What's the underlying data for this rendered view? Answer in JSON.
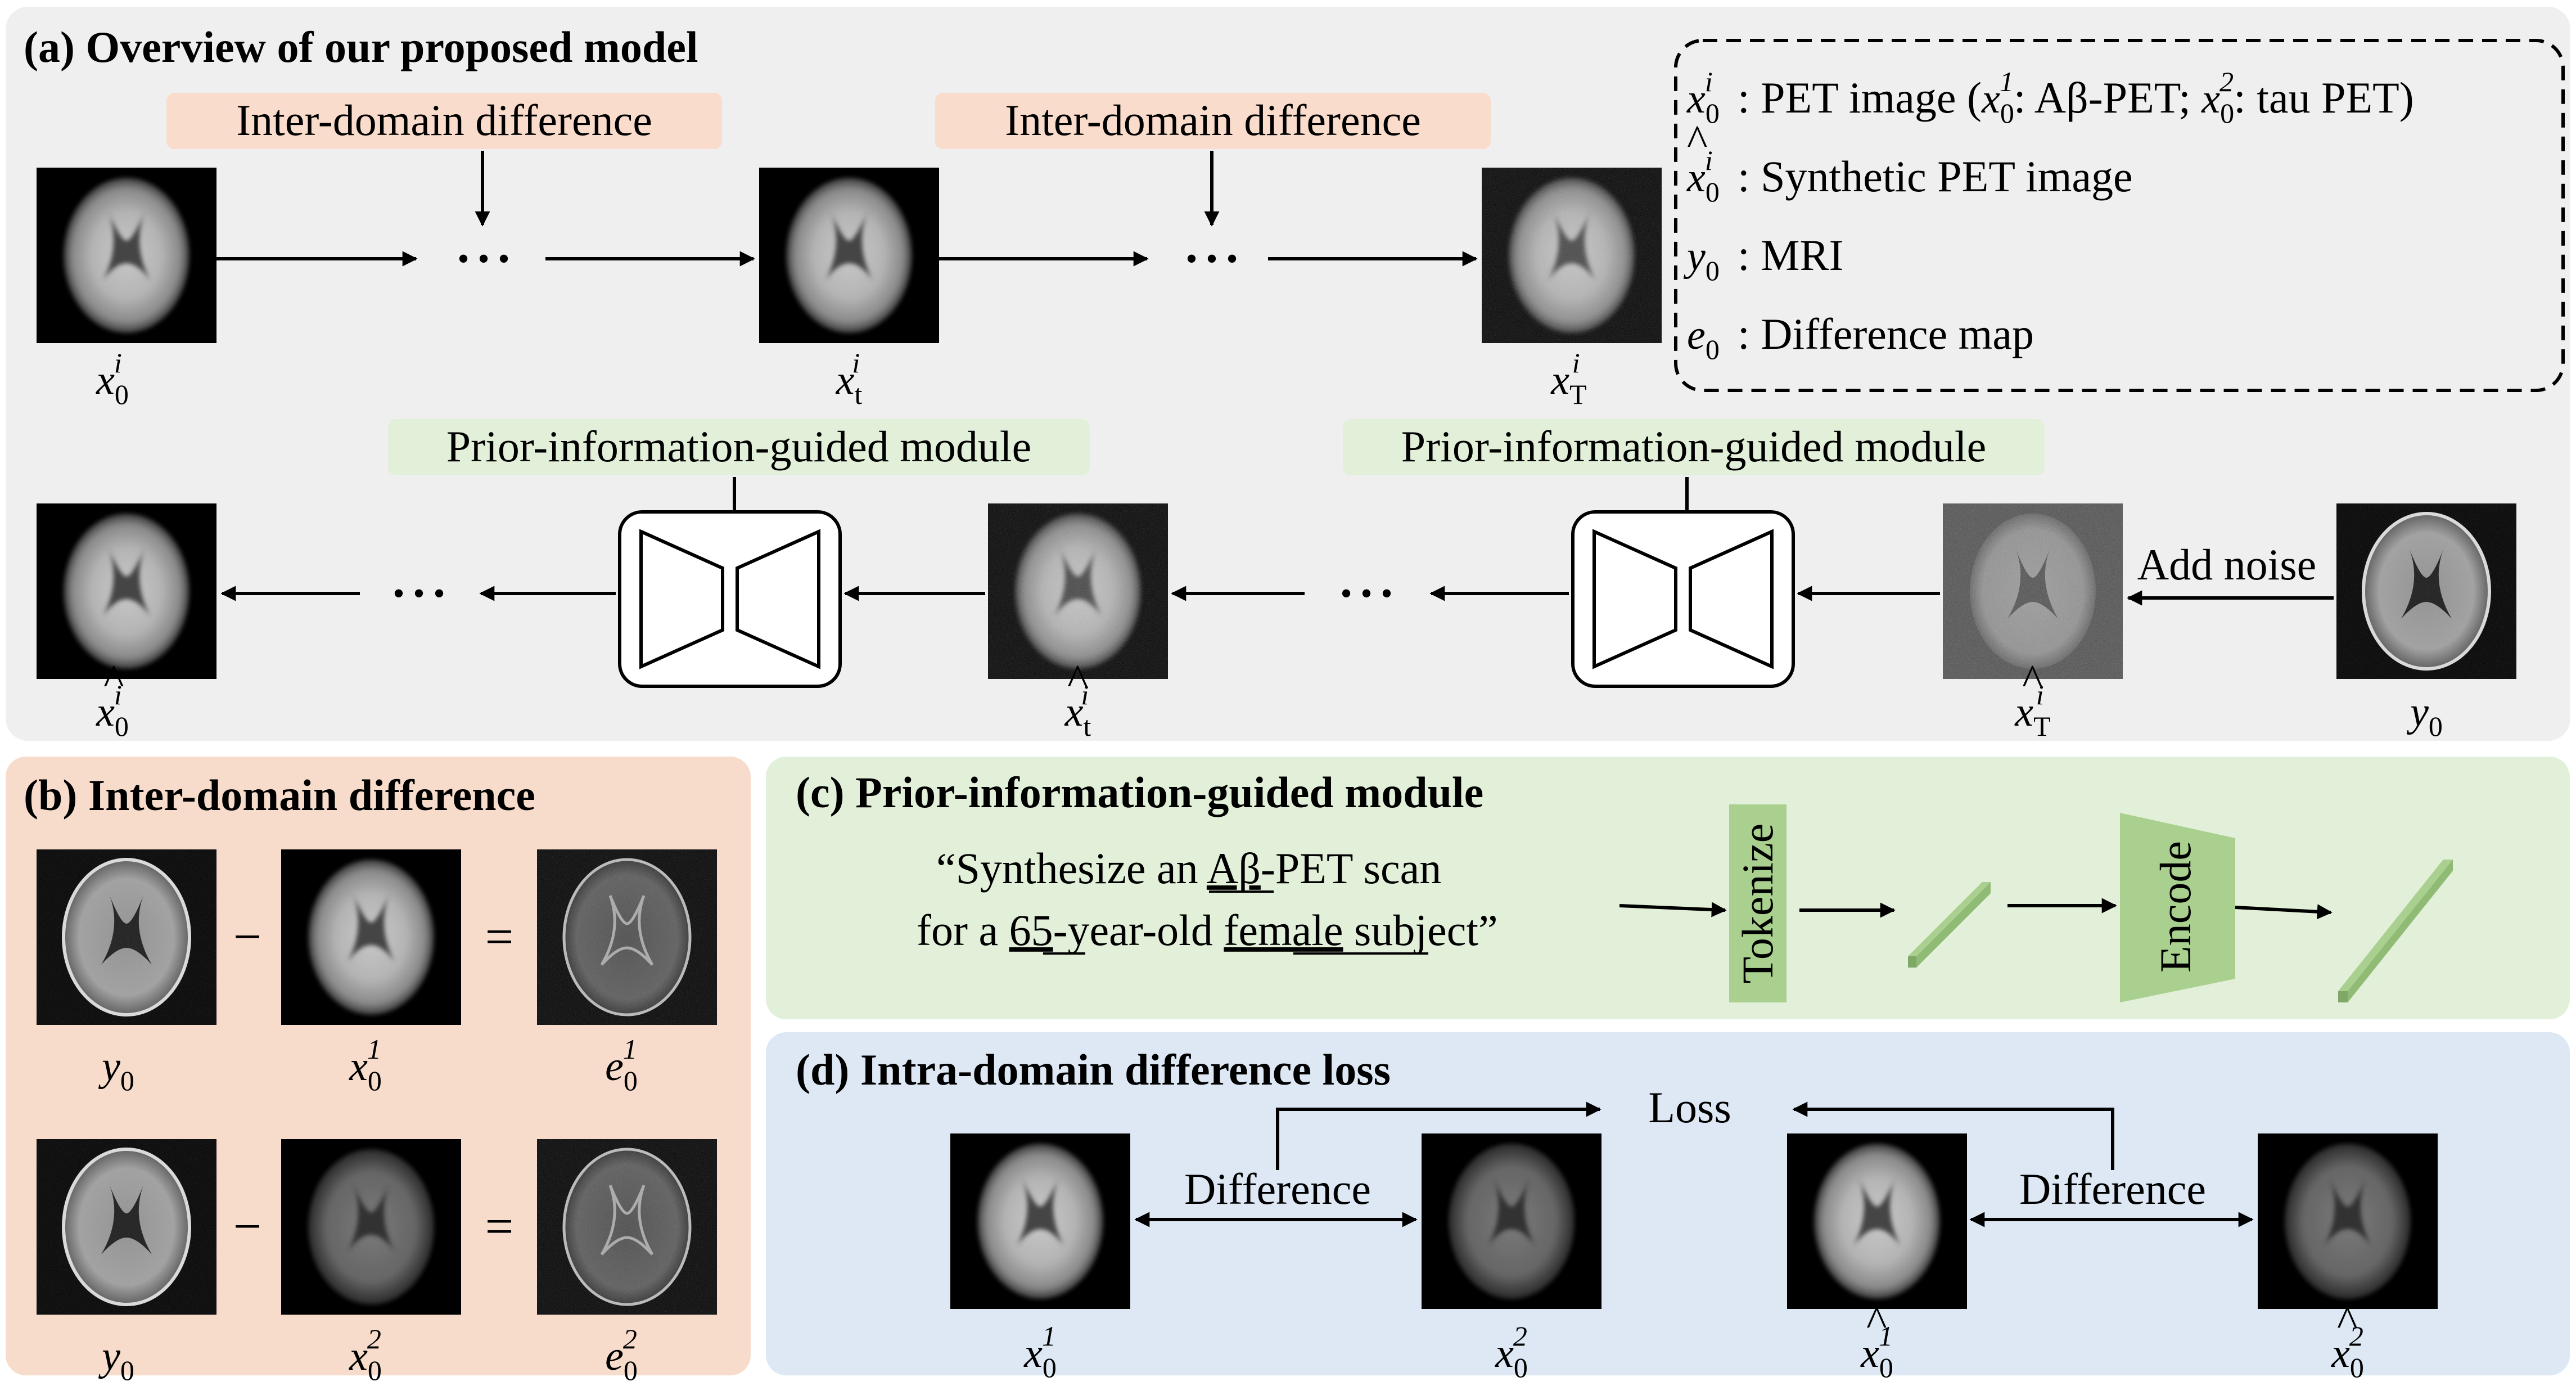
{
  "panels": {
    "a": {
      "title": "(a) Overview of our proposed model"
    },
    "b": {
      "title": "(b) Inter-domain difference"
    },
    "c": {
      "title": "(c) Prior-information-guided module"
    },
    "d": {
      "title": "(d) Intra-domain difference loss"
    }
  },
  "overview": {
    "inter_domain_label": "Inter-domain difference",
    "prior_module_label": "Prior-information-guided module",
    "add_noise_label": "Add noise",
    "dots": "• • •"
  },
  "legend": {
    "line1": ": PET image (",
    "line1_a": ": Aβ-PET; ",
    "line1_b": ": tau PET)",
    "line2": ": Synthetic PET image",
    "line3": ": MRI",
    "line4": ": Difference map"
  },
  "prompt": {
    "line1_pre": "“Synthesize an ",
    "line1_u": "Aβ",
    "line1_post": "-PET scan",
    "line2_pre": "for a ",
    "line2_u1": "65",
    "line2_mid": "-year-old ",
    "line2_u2": "female",
    "line2_post": " subject”",
    "tokenize": "Tokenize",
    "encode": "Encode"
  },
  "loss": {
    "difference": "Difference",
    "loss": "Loss"
  },
  "ops": {
    "minus": "−",
    "equals": "="
  },
  "symbols": {
    "x": "x",
    "y": "y",
    "e": "e",
    "sub0": "0",
    "sup_i": "i",
    "sub_t": "t",
    "sub_T": "T",
    "sup1": "1",
    "sup2": "2"
  },
  "colors": {
    "panel_a": "#efefef",
    "panel_b": "#f8dccb",
    "panel_c": "#e2efd9",
    "panel_d": "#dde8f4",
    "tag_orange": "#f9dccb",
    "tag_green": "#e2efd9",
    "green_block": "#a9d08e",
    "green_block_dark": "#7fa867"
  }
}
